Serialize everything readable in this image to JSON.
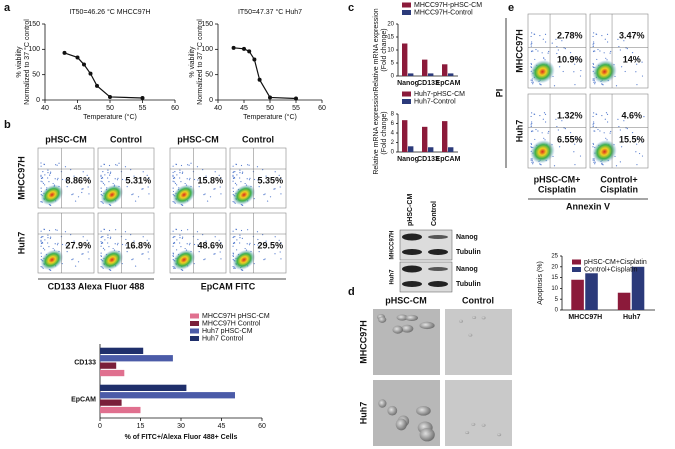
{
  "panel_labels": [
    "a",
    "b",
    "c",
    "d",
    "e"
  ],
  "chart_data": [
    {
      "type": "line",
      "title": "IT50=46.26 °C  MHCC97H",
      "xlabel": "Temperature (°C)",
      "ylabel": [
        "% viability",
        "Normalized to 37 °C control"
      ],
      "x": [
        43,
        45,
        46,
        47,
        48,
        50,
        55
      ],
      "values": [
        93,
        84,
        70,
        52,
        28,
        6,
        4
      ],
      "color": "#111111",
      "xlim": [
        40,
        60
      ],
      "xticks": [
        40,
        45,
        50,
        55,
        60
      ],
      "ylim": [
        0,
        150
      ],
      "yticks": [
        0,
        50,
        100,
        150
      ]
    },
    {
      "type": "line",
      "title": "IT50=47.37 °C  Huh7",
      "xlabel": "Temperature (°C)",
      "ylabel": [
        "% viability",
        "Normalized to 37 °C control"
      ],
      "x": [
        43,
        45,
        46,
        47,
        48,
        50,
        55
      ],
      "values": [
        103,
        101,
        96,
        80,
        40,
        5,
        3
      ],
      "color": "#111111",
      "xlim": [
        40,
        60
      ],
      "xticks": [
        40,
        45,
        50,
        55,
        60
      ],
      "ylim": [
        0,
        150
      ],
      "yticks": [
        0,
        50,
        100,
        150
      ]
    },
    {
      "type": "hbar",
      "xlabel": "% of FITC+/Alexa Fluor 488+ Cells",
      "categories": [
        "CD133",
        "EpCAM"
      ],
      "series": [
        {
          "name": "MHCC97H pHSC-CM",
          "color": "#e0708f",
          "values": [
            9,
            15
          ]
        },
        {
          "name": "MHCC97H Control",
          "color": "#7a1f3a",
          "values": [
            6,
            8
          ]
        },
        {
          "name": "Huh7 pHSC-CM",
          "color": "#4b5ba8",
          "values": [
            27,
            50
          ]
        },
        {
          "name": "Huh7 Control",
          "color": "#1f2f6b",
          "values": [
            16,
            32
          ]
        }
      ],
      "xlim": [
        0,
        60
      ],
      "xticks": [
        0,
        15,
        30,
        45,
        60
      ]
    },
    {
      "type": "bar",
      "ylabel": [
        "Relative mRNA expression",
        "(Fold change)"
      ],
      "categories": [
        "Nanog",
        "CD133",
        "EpCAM"
      ],
      "series": [
        {
          "name": "MHCC97H-pHSC-CM",
          "color": "#8b1a3a",
          "values": [
            12.5,
            6.3,
            4.5
          ]
        },
        {
          "name": "MHCC97H-Control",
          "color": "#2b3a7a",
          "values": [
            1,
            1,
            1
          ]
        }
      ],
      "ylim": [
        0,
        20
      ],
      "yticks": [
        0,
        5,
        10,
        15,
        20
      ]
    },
    {
      "type": "bar",
      "ylabel": [
        "Relative mRNA expression",
        "(Fold change)"
      ],
      "categories": [
        "Nanog",
        "CD133",
        "EpCAM"
      ],
      "series": [
        {
          "name": "Huh7-pHSC-CM",
          "color": "#8b1a3a",
          "values": [
            6.7,
            5.3,
            6.5
          ]
        },
        {
          "name": "Huh7-Control",
          "color": "#2b3a7a",
          "values": [
            1.2,
            1,
            1
          ]
        }
      ],
      "ylim": [
        0,
        8
      ],
      "yticks": [
        0,
        2,
        4,
        6,
        8
      ]
    },
    {
      "type": "bar",
      "ylabel": [
        "Apoptosis (%)"
      ],
      "categories": [
        "MHCC97H",
        "Huh7"
      ],
      "series": [
        {
          "name": "pHSC-CM+Cisplatin",
          "color": "#8b1a3a",
          "values": [
            14,
            8
          ]
        },
        {
          "name": "Control+Cisplatin",
          "color": "#2b3a7a",
          "values": [
            17,
            20
          ]
        }
      ],
      "ylim": [
        0,
        25
      ],
      "yticks": [
        0,
        5,
        10,
        15,
        20,
        25
      ]
    }
  ],
  "flow_b": {
    "columns": [
      "pHSC-CM",
      "Control",
      "pHSC-CM",
      "Control"
    ],
    "rows": [
      "MHCC97H",
      "Huh7"
    ],
    "percentages": [
      [
        "8.86%",
        "5.31%",
        "15.8%",
        "5.35%"
      ],
      [
        "27.9%",
        "16.8%",
        "48.6%",
        "29.5%"
      ]
    ],
    "axis_labels": [
      "CD133 Alexa Fluor 488",
      "EpCAM FITC"
    ]
  },
  "western": {
    "columns": [
      "pHSC-CM",
      "Control"
    ],
    "rows": [
      "MHCC97H",
      "Huh7"
    ],
    "bands": [
      "Nanog",
      "Tubulin",
      "Nanog",
      "Tubulin"
    ]
  },
  "micrographs": {
    "columns": [
      "pHSC-CM",
      "Control"
    ],
    "rows": [
      "MHCC97H",
      "Huh7"
    ]
  },
  "flow_e": {
    "columns": [
      [
        "pHSC-CM+",
        "Cisplatin"
      ],
      [
        "Control+",
        "Cisplatin"
      ]
    ],
    "rows": [
      "MHCC97H",
      "Huh7"
    ],
    "percentages": [
      [
        [
          "2.78%",
          "10.9%"
        ],
        [
          "3.47%",
          "14%"
        ]
      ],
      [
        [
          "1.32%",
          "6.55%"
        ],
        [
          "4.6%",
          "15.5%"
        ]
      ]
    ],
    "y_label": "PI",
    "x_label": "Annexin V"
  }
}
